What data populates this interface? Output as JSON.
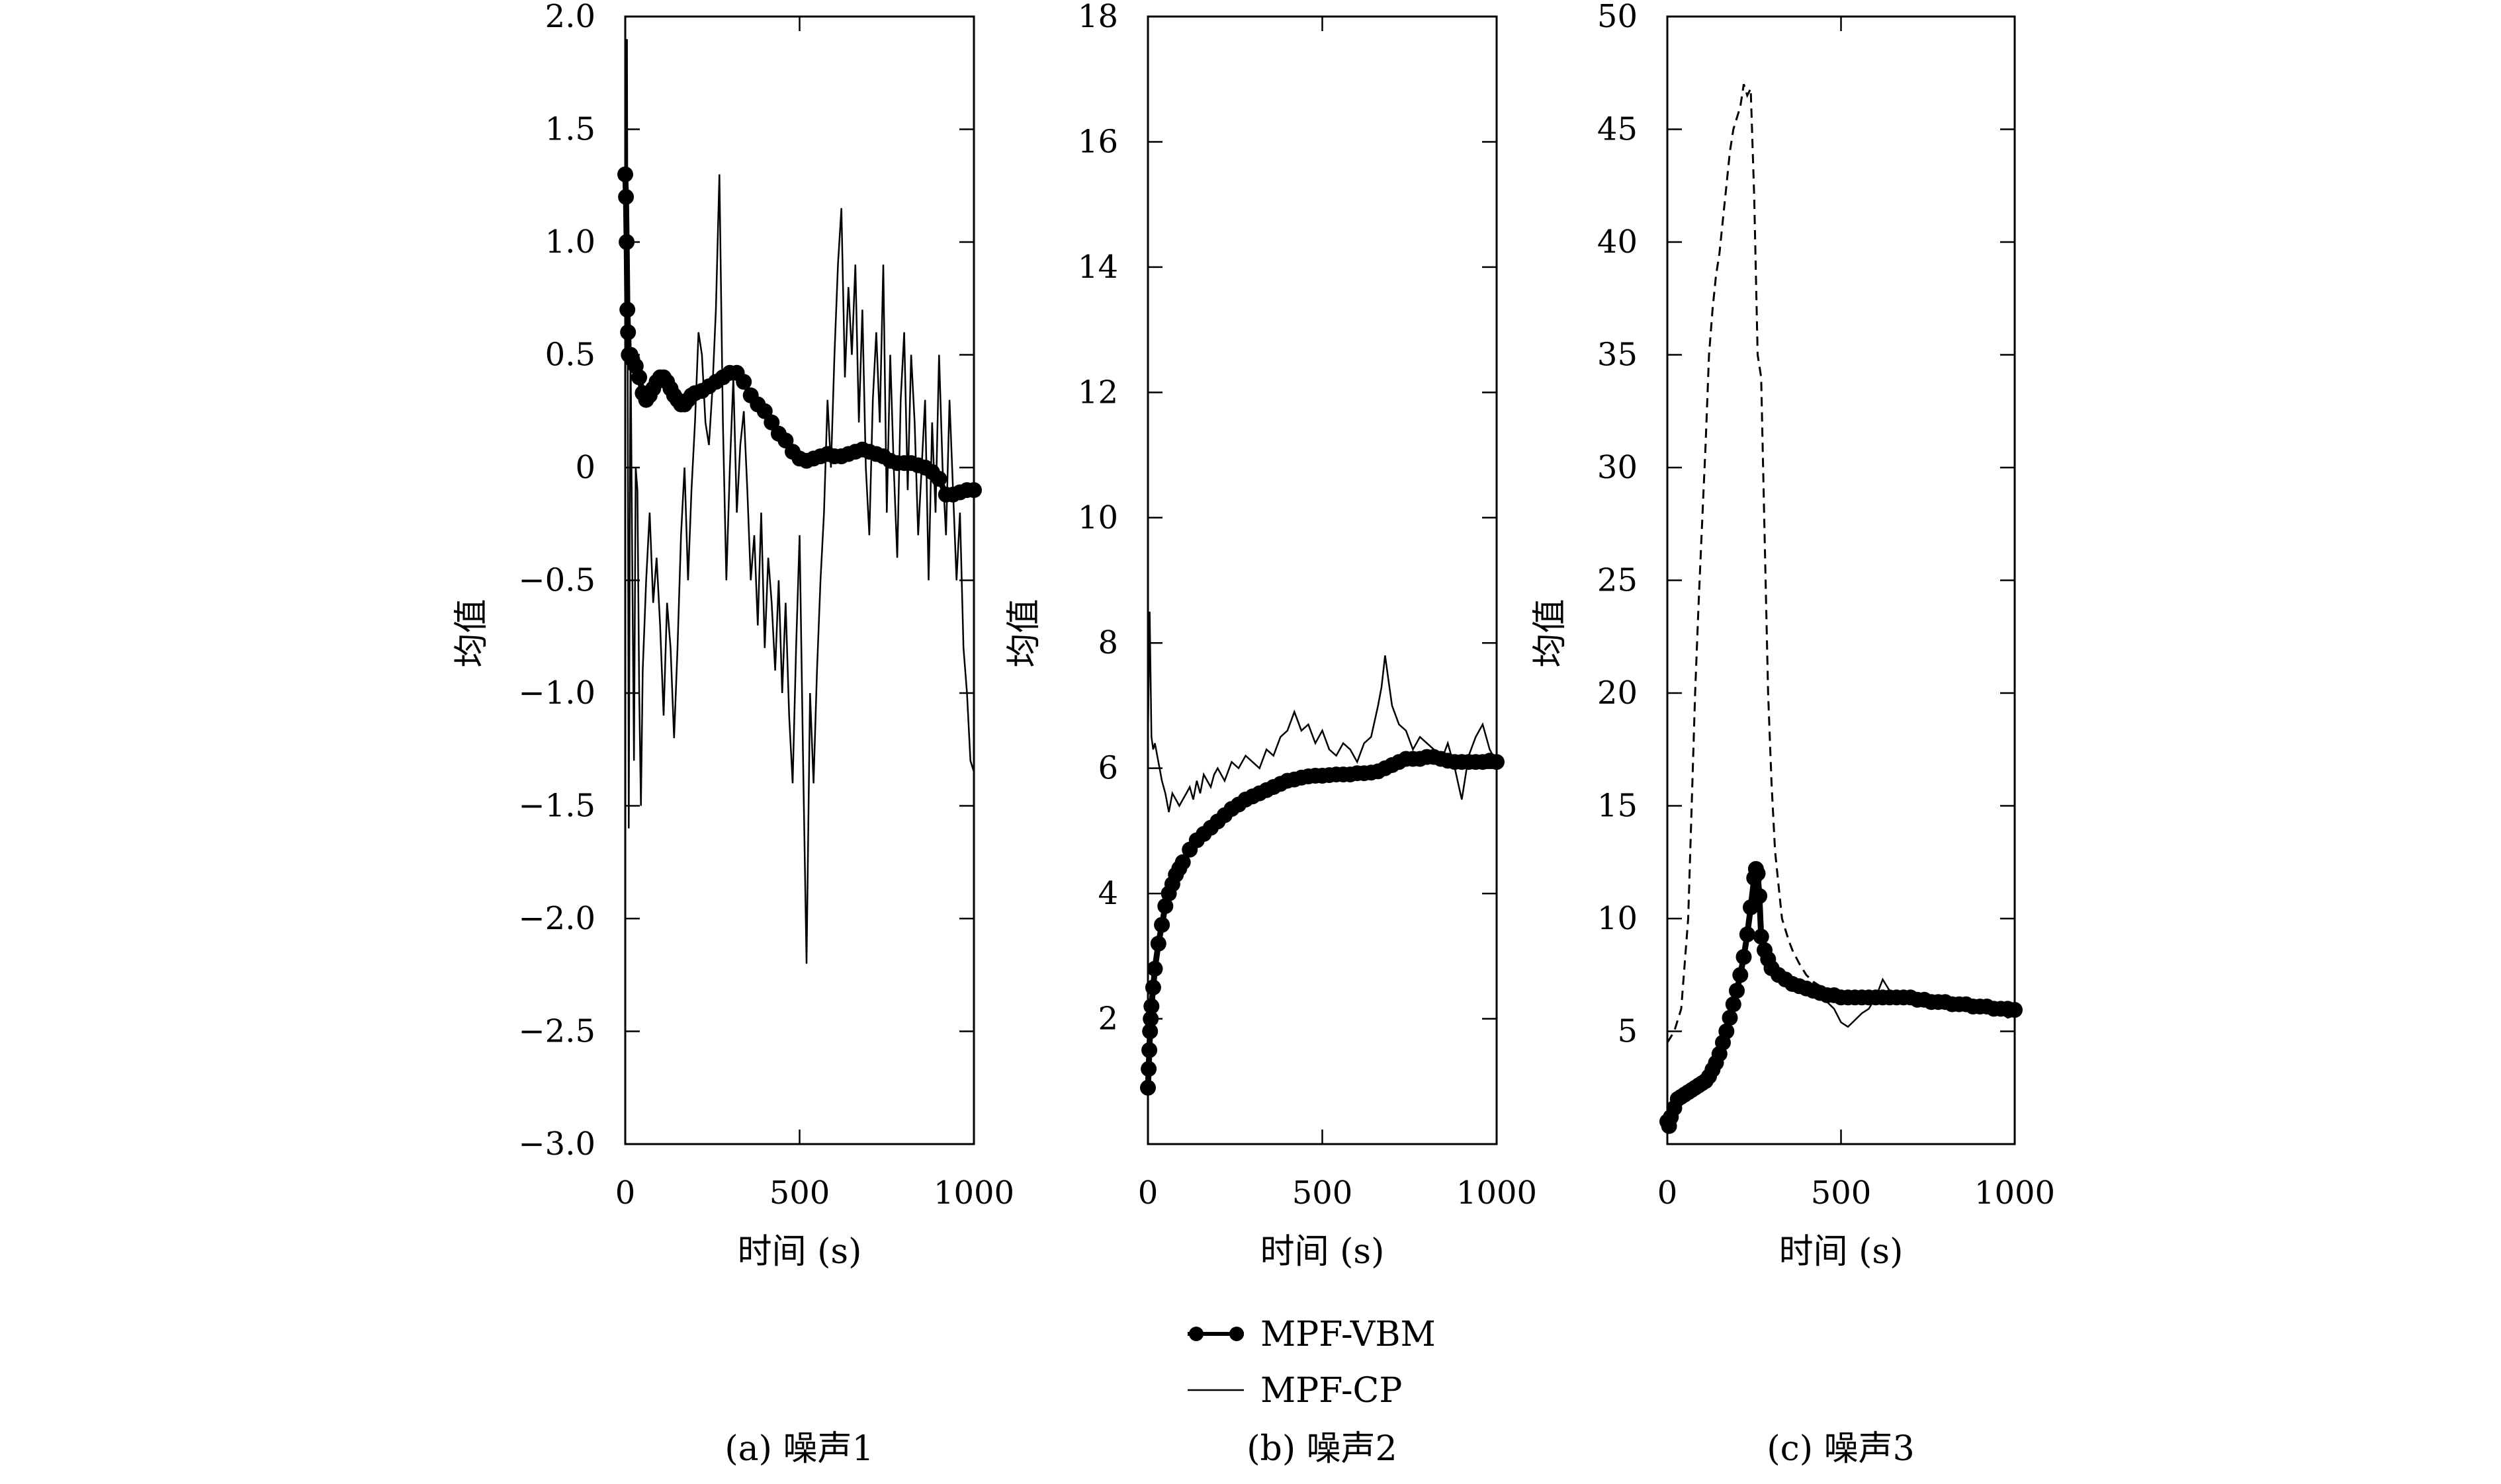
{
  "legend": {
    "items": [
      {
        "label": "MPF-VBM",
        "marker": "line-with-dots"
      },
      {
        "label": "MPF-CP",
        "marker": "thin-line"
      }
    ]
  },
  "chart_data": [
    {
      "type": "line",
      "caption": "(a) 噪声1",
      "xlabel": "时间 (s)",
      "ylabel": "均值",
      "xlim": [
        0,
        1000
      ],
      "ylim": [
        -3.0,
        2.0
      ],
      "xticks": [
        0,
        500,
        1000
      ],
      "xtick_labels": [
        "0",
        "500",
        "1000"
      ],
      "yticks": [
        2.0,
        1.5,
        1.0,
        0.5,
        0,
        -0.5,
        -1.0,
        -1.5,
        -2.0,
        -2.5,
        -3.0
      ],
      "ytick_labels": [
        "2.0",
        "1.5",
        "1.0",
        "0.5",
        "0",
        "−0.5",
        "−1.0",
        "−1.5",
        "−2.0",
        "−2.5",
        "−3.0"
      ],
      "series": [
        {
          "name": "MPF-VBM",
          "style": "thick-dots",
          "x": [
            0,
            2,
            4,
            6,
            8,
            10,
            15,
            20,
            30,
            40,
            50,
            60,
            70,
            80,
            90,
            100,
            110,
            120,
            130,
            140,
            150,
            160,
            170,
            180,
            190,
            200,
            220,
            240,
            260,
            280,
            300,
            320,
            340,
            360,
            380,
            400,
            420,
            440,
            460,
            480,
            500,
            520,
            540,
            560,
            580,
            600,
            620,
            640,
            660,
            680,
            700,
            720,
            740,
            760,
            780,
            800,
            820,
            840,
            860,
            880,
            900,
            920,
            940,
            960,
            980,
            1000
          ],
          "y": [
            1.3,
            1.2,
            1.0,
            0.7,
            0.6,
            0.5,
            0.5,
            0.48,
            0.45,
            0.4,
            0.33,
            0.3,
            0.32,
            0.35,
            0.38,
            0.4,
            0.4,
            0.38,
            0.35,
            0.32,
            0.3,
            0.28,
            0.28,
            0.3,
            0.32,
            0.33,
            0.34,
            0.36,
            0.38,
            0.4,
            0.42,
            0.42,
            0.38,
            0.32,
            0.28,
            0.25,
            0.2,
            0.15,
            0.12,
            0.07,
            0.04,
            0.03,
            0.04,
            0.05,
            0.06,
            0.05,
            0.05,
            0.06,
            0.07,
            0.08,
            0.07,
            0.06,
            0.05,
            0.03,
            0.02,
            0.02,
            0.02,
            0.01,
            0.0,
            -0.02,
            -0.05,
            -0.12,
            -0.12,
            -0.11,
            -0.1,
            -0.1
          ]
        },
        {
          "name": "MPF-CP",
          "style": "thin",
          "x": [
            0,
            5,
            10,
            15,
            20,
            25,
            30,
            35,
            40,
            45,
            50,
            60,
            70,
            80,
            90,
            100,
            110,
            120,
            130,
            140,
            150,
            160,
            170,
            180,
            190,
            200,
            210,
            220,
            230,
            240,
            250,
            260,
            270,
            280,
            290,
            300,
            310,
            320,
            330,
            340,
            350,
            360,
            370,
            380,
            390,
            400,
            410,
            420,
            430,
            440,
            450,
            460,
            470,
            480,
            490,
            500,
            510,
            520,
            530,
            540,
            550,
            560,
            570,
            580,
            590,
            600,
            610,
            620,
            630,
            640,
            650,
            660,
            670,
            680,
            690,
            700,
            710,
            720,
            730,
            740,
            750,
            760,
            770,
            780,
            790,
            800,
            810,
            820,
            830,
            840,
            850,
            860,
            870,
            880,
            890,
            900,
            910,
            920,
            930,
            940,
            950,
            960,
            970,
            980,
            990,
            1000
          ],
          "y": [
            0.5,
            1.9,
            -1.6,
            0.6,
            -0.4,
            -1.3,
            0.0,
            -0.1,
            -1.0,
            -1.5,
            -0.9,
            -0.5,
            -0.2,
            -0.6,
            -0.4,
            -0.7,
            -1.1,
            -0.6,
            -0.8,
            -1.2,
            -0.8,
            -0.3,
            0.0,
            -0.5,
            -0.1,
            0.2,
            0.6,
            0.5,
            0.2,
            0.1,
            0.35,
            0.7,
            1.3,
            0.2,
            -0.5,
            0.0,
            0.4,
            -0.2,
            0.1,
            0.25,
            -0.1,
            -0.5,
            -0.3,
            -0.7,
            -0.2,
            -0.8,
            -0.4,
            -0.6,
            -0.9,
            -0.5,
            -1.0,
            -0.6,
            -1.1,
            -1.4,
            -0.8,
            -0.3,
            -1.3,
            -2.2,
            -1.0,
            -1.4,
            -0.9,
            -0.5,
            -0.2,
            0.3,
            0.0,
            0.5,
            0.9,
            1.15,
            0.4,
            0.8,
            0.5,
            0.9,
            0.2,
            0.7,
            0.0,
            -0.3,
            0.3,
            0.6,
            0.2,
            0.9,
            -0.2,
            0.5,
            0.0,
            -0.4,
            0.3,
            0.6,
            -0.1,
            0.5,
            0.2,
            -0.3,
            0.0,
            0.3,
            -0.5,
            0.2,
            -0.2,
            0.5,
            0.0,
            -0.3,
            0.3,
            -0.1,
            -0.5,
            -0.2,
            -0.8,
            -1.0,
            -1.3,
            -1.35
          ]
        }
      ]
    },
    {
      "type": "line",
      "caption": "(b) 噪声2",
      "xlabel": "时间 (s)",
      "ylabel": "均值",
      "xlim": [
        0,
        1000
      ],
      "ylim": [
        0,
        18
      ],
      "xticks": [
        0,
        500,
        1000
      ],
      "xtick_labels": [
        "0",
        "500",
        "1000"
      ],
      "yticks": [
        2,
        4,
        6,
        8,
        10,
        12,
        14,
        16,
        18
      ],
      "ytick_labels": [
        "2",
        "4",
        "6",
        "8",
        "10",
        "12",
        "14",
        "16",
        "18"
      ],
      "series": [
        {
          "name": "MPF-VBM",
          "style": "thick-dots",
          "x": [
            0,
            2,
            4,
            6,
            8,
            10,
            15,
            20,
            30,
            40,
            50,
            60,
            70,
            80,
            90,
            100,
            120,
            140,
            160,
            180,
            200,
            220,
            240,
            260,
            280,
            300,
            320,
            340,
            360,
            380,
            400,
            420,
            440,
            460,
            480,
            500,
            520,
            540,
            560,
            580,
            600,
            620,
            640,
            660,
            680,
            700,
            720,
            740,
            760,
            780,
            800,
            820,
            840,
            860,
            880,
            900,
            920,
            940,
            960,
            980,
            1000
          ],
          "y": [
            0.9,
            1.2,
            1.5,
            1.8,
            2.0,
            2.2,
            2.5,
            2.8,
            3.2,
            3.5,
            3.8,
            4.0,
            4.15,
            4.3,
            4.4,
            4.5,
            4.7,
            4.85,
            4.95,
            5.05,
            5.15,
            5.25,
            5.35,
            5.42,
            5.5,
            5.55,
            5.6,
            5.65,
            5.7,
            5.75,
            5.8,
            5.82,
            5.85,
            5.87,
            5.88,
            5.88,
            5.89,
            5.9,
            5.9,
            5.9,
            5.92,
            5.92,
            5.93,
            5.95,
            6.0,
            6.05,
            6.1,
            6.15,
            6.15,
            6.15,
            6.18,
            6.18,
            6.15,
            6.12,
            6.1,
            6.1,
            6.1,
            6.1,
            6.1,
            6.12,
            6.1
          ]
        },
        {
          "name": "MPF-CP",
          "style": "thin",
          "x": [
            0,
            5,
            10,
            15,
            20,
            30,
            40,
            50,
            60,
            70,
            80,
            90,
            100,
            110,
            120,
            130,
            140,
            150,
            160,
            170,
            180,
            190,
            200,
            220,
            240,
            260,
            280,
            300,
            320,
            340,
            360,
            380,
            400,
            420,
            440,
            460,
            480,
            500,
            520,
            540,
            560,
            580,
            600,
            620,
            640,
            660,
            670,
            680,
            690,
            700,
            720,
            740,
            760,
            780,
            800,
            820,
            840,
            860,
            880,
            900,
            920,
            940,
            960,
            980,
            1000
          ],
          "y": [
            6.5,
            8.5,
            6.5,
            6.3,
            6.4,
            6.1,
            5.8,
            5.6,
            5.3,
            5.6,
            5.5,
            5.4,
            5.5,
            5.6,
            5.7,
            5.5,
            5.8,
            5.6,
            5.9,
            5.8,
            5.7,
            5.9,
            6.0,
            5.8,
            6.1,
            6.0,
            6.2,
            6.1,
            6.0,
            6.3,
            6.2,
            6.5,
            6.6,
            6.9,
            6.6,
            6.7,
            6.4,
            6.6,
            6.3,
            6.2,
            6.4,
            6.3,
            6.1,
            6.4,
            6.5,
            7.0,
            7.3,
            7.8,
            7.4,
            7.0,
            6.7,
            6.6,
            6.3,
            6.5,
            6.4,
            6.3,
            6.1,
            6.4,
            6.0,
            5.5,
            6.2,
            6.5,
            6.7,
            6.3,
            6.1
          ]
        }
      ]
    },
    {
      "type": "line",
      "caption": "(c) 噪声3",
      "xlabel": "时间 (s)",
      "ylabel": "均值",
      "xlim": [
        0,
        1000
      ],
      "ylim": [
        0,
        50
      ],
      "xticks": [
        0,
        500,
        1000
      ],
      "xtick_labels": [
        "0",
        "500",
        "1000"
      ],
      "yticks": [
        5,
        10,
        15,
        20,
        25,
        30,
        35,
        40,
        45,
        50
      ],
      "ytick_labels": [
        "5",
        "10",
        "15",
        "20",
        "25",
        "30",
        "35",
        "40",
        "45",
        "50"
      ],
      "series": [
        {
          "name": "",
          "style": "dashed",
          "x": [
            0,
            20,
            40,
            60,
            70,
            80,
            90,
            100,
            110,
            120,
            130,
            140,
            150,
            160,
            170,
            180,
            190,
            200,
            210,
            220,
            230,
            240,
            250,
            260,
            270,
            280,
            290,
            300,
            310,
            320,
            330,
            340,
            350,
            360,
            380,
            400,
            420,
            440,
            460,
            480,
            500,
            520,
            540,
            560,
            580,
            600,
            620,
            640,
            660,
            680,
            700,
            720,
            740,
            760,
            780,
            800,
            820,
            840,
            860,
            880,
            900,
            920,
            940,
            960,
            980,
            1000
          ],
          "y": [
            4.5,
            5.0,
            6.0,
            10.0,
            15.0,
            20.0,
            24.0,
            27.5,
            31.0,
            35.0,
            37.0,
            38.5,
            39.5,
            41.0,
            42.5,
            44.0,
            45.0,
            45.5,
            46.0,
            47.0,
            46.5,
            46.8,
            42.0,
            35.0,
            34.0,
            27.0,
            20.0,
            16.0,
            13.0,
            11.5,
            10.0,
            9.5,
            9.0,
            8.6,
            8.0,
            7.5,
            7.2,
            7.0,
            6.8,
            6.6,
            6.5,
            6.6,
            6.5,
            6.5,
            6.6,
            6.5,
            6.7,
            6.6,
            6.6,
            6.5,
            6.5,
            6.4,
            6.4,
            6.4,
            6.3,
            6.3,
            6.3,
            6.2,
            6.2,
            6.2,
            6.1,
            6.1,
            6.1,
            6.0,
            6.0,
            6.0
          ]
        },
        {
          "name": "MPF-VBM",
          "style": "thick-dots",
          "x": [
            0,
            5,
            10,
            20,
            30,
            40,
            50,
            60,
            70,
            80,
            90,
            100,
            110,
            120,
            130,
            140,
            150,
            160,
            170,
            180,
            190,
            200,
            210,
            220,
            230,
            240,
            250,
            255,
            260,
            265,
            270,
            280,
            290,
            300,
            320,
            340,
            360,
            380,
            400,
            420,
            440,
            460,
            480,
            500,
            520,
            540,
            560,
            580,
            600,
            620,
            640,
            660,
            680,
            700,
            720,
            740,
            760,
            780,
            800,
            820,
            840,
            860,
            880,
            900,
            920,
            940,
            960,
            980,
            1000
          ],
          "y": [
            1.0,
            0.8,
            1.2,
            1.6,
            2.0,
            2.1,
            2.2,
            2.3,
            2.4,
            2.5,
            2.6,
            2.7,
            2.8,
            3.0,
            3.3,
            3.6,
            4.0,
            4.5,
            5.0,
            5.6,
            6.2,
            6.8,
            7.5,
            8.3,
            9.3,
            10.5,
            11.8,
            12.2,
            12.0,
            11.0,
            9.2,
            8.6,
            8.2,
            7.8,
            7.5,
            7.3,
            7.1,
            7.0,
            6.9,
            6.8,
            6.7,
            6.6,
            6.6,
            6.5,
            6.5,
            6.5,
            6.5,
            6.5,
            6.5,
            6.5,
            6.5,
            6.5,
            6.5,
            6.5,
            6.4,
            6.4,
            6.3,
            6.3,
            6.3,
            6.2,
            6.2,
            6.2,
            6.1,
            6.1,
            6.1,
            6.0,
            6.0,
            6.0,
            5.95
          ]
        },
        {
          "name": "MPF-CP",
          "style": "thin",
          "x": [
            300,
            320,
            340,
            360,
            380,
            400,
            420,
            440,
            460,
            480,
            500,
            520,
            540,
            560,
            580,
            600,
            620,
            640,
            660,
            680,
            700,
            720,
            740,
            760,
            780,
            800,
            820,
            840,
            860,
            880,
            900,
            920,
            940,
            960,
            980,
            1000
          ],
          "y": [
            7.5,
            7.4,
            7.2,
            7.0,
            7.1,
            6.8,
            6.5,
            6.6,
            6.3,
            6.0,
            5.4,
            5.2,
            5.5,
            5.8,
            6.0,
            6.5,
            7.3,
            6.8,
            6.4,
            6.6,
            6.5,
            6.3,
            6.5,
            6.4,
            6.2,
            6.3,
            6.0,
            6.2,
            5.9,
            6.0,
            5.8,
            5.9,
            5.7,
            5.8,
            5.6,
            5.7
          ]
        }
      ]
    }
  ]
}
